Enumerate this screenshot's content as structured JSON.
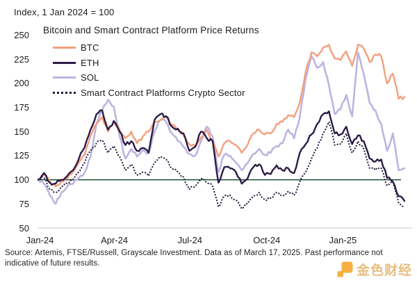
{
  "header": {
    "index_note": "Index, 1 Jan 2024 = 100"
  },
  "footer": {
    "source_line1": "Source: Artemis, FTSE/Russell, Grayscale Investment. Data as of March 17, 2025. Past performance not",
    "source_line2": "indicative of future results."
  },
  "watermark": {
    "text": "金色财经",
    "text_color": "#DFA64F",
    "logo_color": "#F5A11F"
  },
  "chart_data": {
    "type": "line",
    "title": "Bitcoin and Smart Contract Platform Price Returns",
    "x_unit": "weeks since 1 Jan 2024",
    "x_range_label": [
      "1 Jan 2024",
      "17 Mar 2025"
    ],
    "ylim": [
      50,
      250
    ],
    "y_ticks": [
      250,
      225,
      200,
      175,
      150,
      125,
      100,
      75,
      50
    ],
    "x_ticks": [
      {
        "label": "Jan-24",
        "week": 0.3
      },
      {
        "label": "Apr-24",
        "week": 13.1
      },
      {
        "label": "Jul-24",
        "week": 26.1
      },
      {
        "label": "Oct-24",
        "week": 39.3
      },
      {
        "label": "Jan-25",
        "week": 52.4
      }
    ],
    "reference_line": {
      "value": 100,
      "color": "#1C4B33"
    },
    "axis_line_color": "#D8D8D8",
    "legend_position": "top-left",
    "grid": false,
    "series": [
      {
        "name": "BTC",
        "color": "#F49E7C",
        "style": "solid",
        "values": [
          100,
          105,
          98,
          93,
          99,
          101,
          108,
          118,
          126,
          146,
          158,
          165,
          150,
          160,
          152,
          143,
          150,
          138,
          145,
          150,
          160,
          162,
          166,
          157,
          152,
          146,
          137,
          134,
          144,
          152,
          140,
          124,
          138,
          140,
          136,
          128,
          136,
          148,
          152,
          147,
          148,
          158,
          160,
          167,
          165,
          180,
          212,
          232,
          228,
          237,
          240,
          226,
          224,
          233,
          218,
          240,
          236,
          222,
          230,
          228,
          200,
          210,
          184,
          186
        ]
      },
      {
        "name": "ETH",
        "color": "#2B1B47",
        "style": "solid",
        "values": [
          100,
          107,
          97,
          96,
          100,
          104,
          110,
          122,
          134,
          152,
          168,
          172,
          152,
          161,
          150,
          136,
          140,
          130,
          133,
          128,
          162,
          168,
          166,
          155,
          153,
          148,
          130,
          134,
          150,
          143,
          140,
          97,
          113,
          112,
          108,
          96,
          101,
          113,
          116,
          105,
          106,
          115,
          110,
          112,
          107,
          128,
          137,
          147,
          158,
          168,
          171,
          148,
          147,
          155,
          137,
          146,
          140,
          122,
          119,
          121,
          102,
          98,
          83,
          78
        ]
      },
      {
        "name": "SOL",
        "color": "#BCB4E0",
        "style": "solid",
        "values": [
          100,
          96,
          84,
          75,
          87,
          93,
          96,
          102,
          108,
          124,
          158,
          172,
          183,
          176,
          145,
          122,
          132,
          124,
          131,
          128,
          150,
          162,
          160,
          148,
          140,
          134,
          127,
          125,
          140,
          155,
          145,
          108,
          126,
          125,
          118,
          110,
          117,
          127,
          132,
          126,
          128,
          135,
          138,
          152,
          143,
          165,
          205,
          228,
          216,
          222,
          198,
          168,
          173,
          188,
          166,
          232,
          210,
          180,
          172,
          158,
          130,
          148,
          110,
          112
        ]
      },
      {
        "name": "Smart Contract Platforms Crypto Sector",
        "color": "#241A3E",
        "style": "dotted",
        "values": [
          100,
          102,
          90,
          87,
          93,
          96,
          100,
          108,
          118,
          130,
          138,
          141,
          128,
          135,
          124,
          110,
          116,
          105,
          108,
          104,
          118,
          124,
          121,
          112,
          108,
          103,
          90,
          93,
          101,
          97,
          93,
          72,
          83,
          84,
          79,
          70,
          75,
          83,
          87,
          79,
          81,
          87,
          84,
          88,
          84,
          98,
          108,
          122,
          133,
          148,
          160,
          136,
          137,
          148,
          128,
          140,
          132,
          112,
          110,
          112,
          94,
          98,
          76,
          73
        ]
      }
    ]
  }
}
